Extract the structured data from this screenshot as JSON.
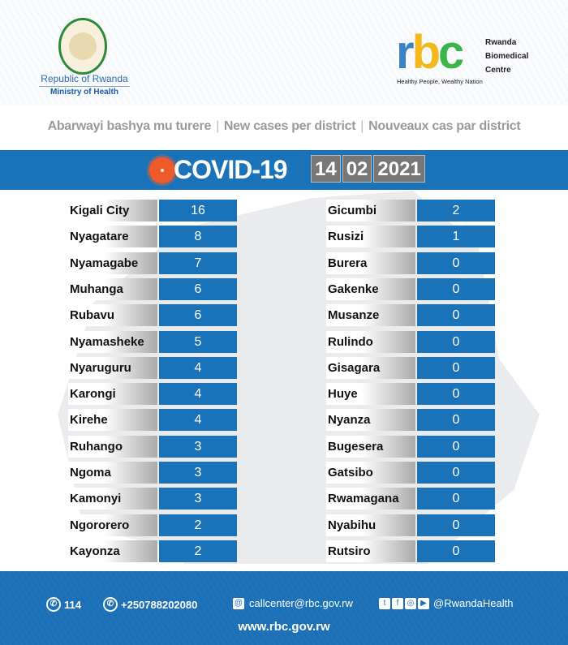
{
  "header": {
    "republic": "Republic of Rwanda",
    "ministry": "Ministry of Health",
    "rbc_logo": "rbc",
    "rbc_name": [
      "Rwanda",
      "Biomedical",
      "Centre"
    ],
    "rbc_tagline": "Healthy People, Wealthy Nation"
  },
  "subtitle": [
    "Abarwayi bashya mu turere",
    "New cases per district",
    "Nouveaux cas par district"
  ],
  "banner": {
    "title": "COVID-19",
    "date": [
      "14",
      "02",
      "2021"
    ]
  },
  "colors": {
    "accent": "#1a72b9",
    "virus": "#ef5a2a"
  },
  "districts_left": [
    [
      "Kigali City",
      "16"
    ],
    [
      "Nyagatare",
      "8"
    ],
    [
      "Nyamagabe",
      "7"
    ],
    [
      "Muhanga",
      "6"
    ],
    [
      "Rubavu",
      "6"
    ],
    [
      "Nyamasheke",
      "5"
    ],
    [
      "Nyaruguru",
      "4"
    ],
    [
      "Karongi",
      "4"
    ],
    [
      "Kirehe",
      "4"
    ],
    [
      "Ruhango",
      "3"
    ],
    [
      "Ngoma",
      "3"
    ],
    [
      "Kamonyi",
      "3"
    ],
    [
      "Ngororero",
      "2"
    ],
    [
      "Kayonza",
      "2"
    ]
  ],
  "districts_right": [
    [
      "Gicumbi",
      "2"
    ],
    [
      "Rusizi",
      "1"
    ],
    [
      "Burera",
      "0"
    ],
    [
      "Gakenke",
      "0"
    ],
    [
      "Musanze",
      "0"
    ],
    [
      "Rulindo",
      "0"
    ],
    [
      "Gisagara",
      "0"
    ],
    [
      "Huye",
      "0"
    ],
    [
      "Nyanza",
      "0"
    ],
    [
      "Bugesera",
      "0"
    ],
    [
      "Gatsibo",
      "0"
    ],
    [
      "Rwamagana",
      "0"
    ],
    [
      "Nyabihu",
      "0"
    ],
    [
      "Rutsiro",
      "0"
    ]
  ],
  "footer": {
    "hotline": "114",
    "phone": "+250788202080",
    "email": "callcenter@rbc.gov.rw",
    "social": "@RwandaHealth",
    "website": "www.rbc.gov.rw"
  }
}
